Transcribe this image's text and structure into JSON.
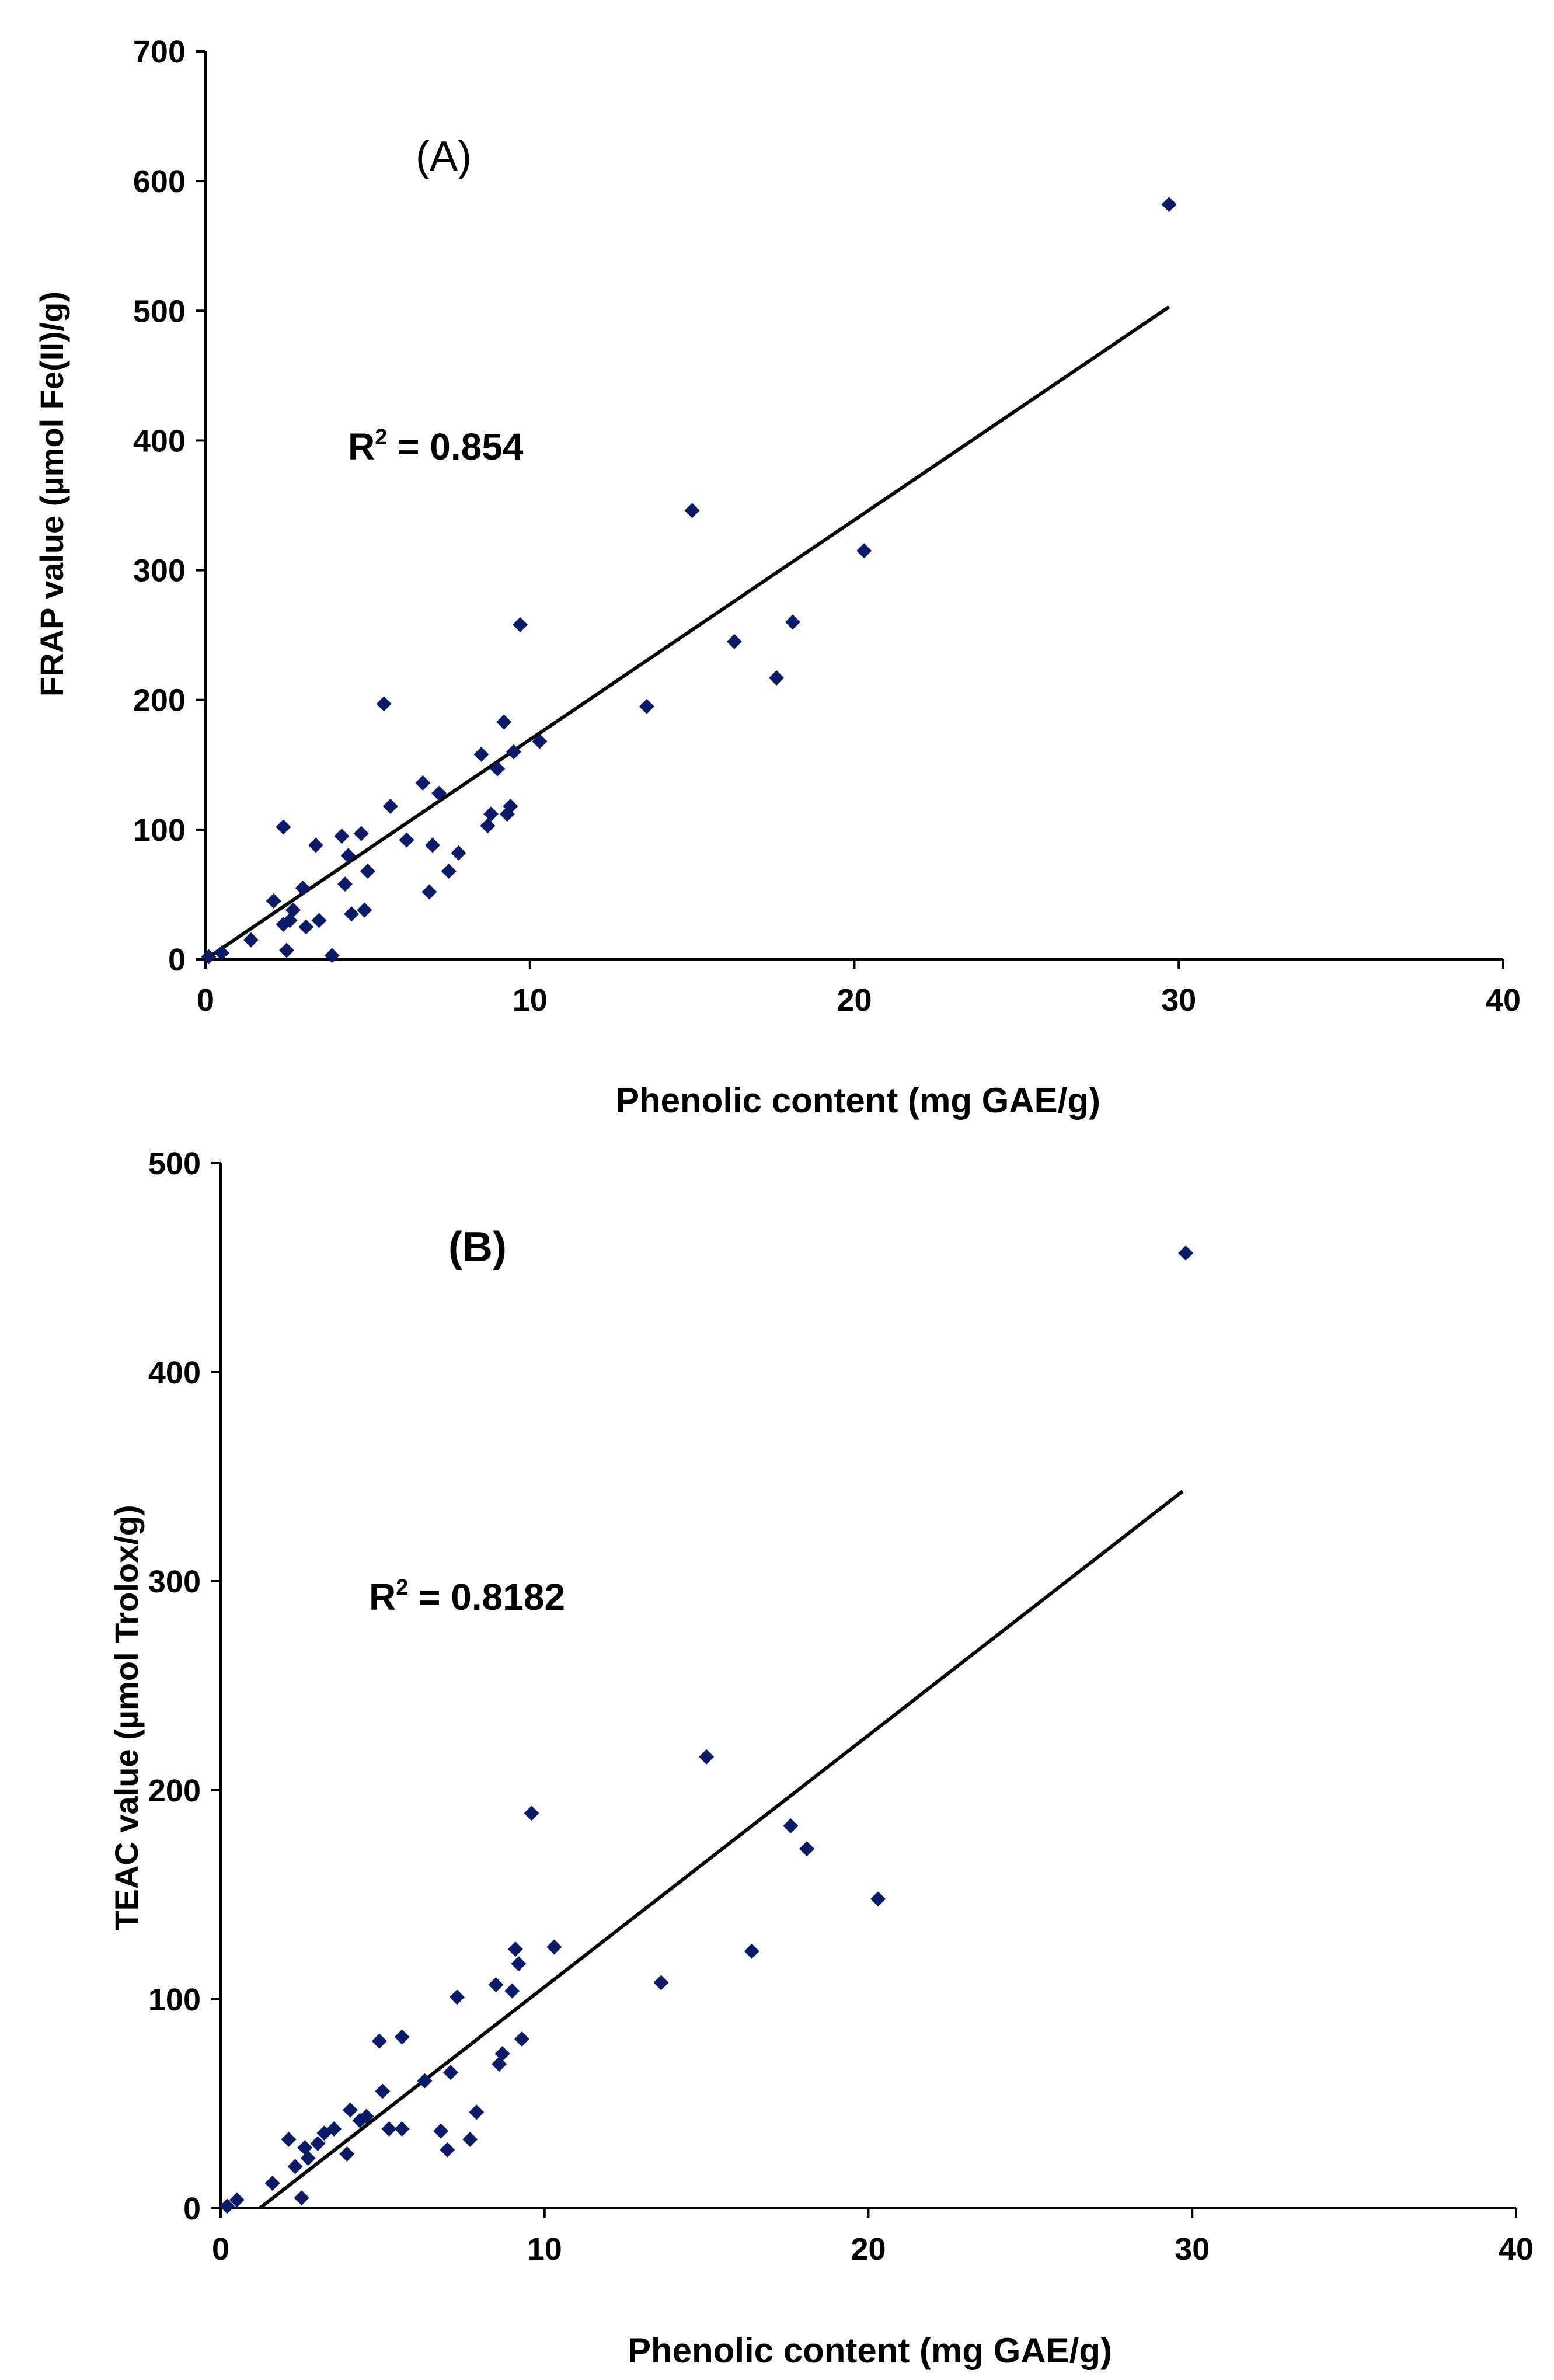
{
  "chart_data": [
    {
      "type": "scatter",
      "panel_label": "(A)",
      "xlabel": "Phenolic content (mg GAE/g)",
      "ylabel": "FRAP value (µmol Fe(II)/g)",
      "xlim": [
        0,
        40
      ],
      "ylim": [
        0,
        700
      ],
      "xticks": [
        0,
        10,
        20,
        30,
        40
      ],
      "yticks": [
        0,
        100,
        200,
        300,
        400,
        500,
        600,
        700
      ],
      "xtick_labels": [
        "0",
        "10",
        "20",
        "30",
        "40"
      ],
      "ytick_labels": [
        "0",
        "100",
        "200",
        "300",
        "400",
        "500",
        "600",
        "700"
      ],
      "r2_prefix": "R",
      "r2_sup": "2",
      "r2_value": " = 0.854",
      "trendline": {
        "x": [
          0,
          29.7
        ],
        "y": [
          0,
          503
        ]
      },
      "points": [
        [
          0.1,
          2
        ],
        [
          0.5,
          5
        ],
        [
          1.4,
          15
        ],
        [
          2.1,
          45
        ],
        [
          2.4,
          102
        ],
        [
          2.4,
          27
        ],
        [
          2.5,
          7
        ],
        [
          2.6,
          30
        ],
        [
          2.7,
          38
        ],
        [
          3.0,
          55
        ],
        [
          3.1,
          25
        ],
        [
          3.4,
          88
        ],
        [
          3.5,
          30
        ],
        [
          3.9,
          3
        ],
        [
          4.2,
          95
        ],
        [
          4.3,
          58
        ],
        [
          4.4,
          80
        ],
        [
          4.5,
          35
        ],
        [
          4.8,
          97
        ],
        [
          4.9,
          38
        ],
        [
          5.0,
          68
        ],
        [
          5.5,
          197
        ],
        [
          5.7,
          118
        ],
        [
          6.2,
          92
        ],
        [
          6.7,
          136
        ],
        [
          6.9,
          52
        ],
        [
          7.0,
          88
        ],
        [
          7.2,
          128
        ],
        [
          7.5,
          68
        ],
        [
          7.8,
          82
        ],
        [
          8.5,
          158
        ],
        [
          8.7,
          103
        ],
        [
          8.8,
          112
        ],
        [
          9.0,
          147
        ],
        [
          9.2,
          183
        ],
        [
          9.3,
          112
        ],
        [
          9.4,
          118
        ],
        [
          9.5,
          160
        ],
        [
          9.7,
          258
        ],
        [
          10.3,
          168
        ],
        [
          13.6,
          195
        ],
        [
          15.0,
          346
        ],
        [
          16.3,
          245
        ],
        [
          17.6,
          217
        ],
        [
          18.1,
          260
        ],
        [
          20.3,
          315
        ],
        [
          29.7,
          582
        ]
      ]
    },
    {
      "type": "scatter",
      "panel_label": "(B)",
      "xlabel": "Phenolic content (mg GAE/g)",
      "ylabel": "TEAC value (µmol Trolox/g)",
      "xlim": [
        0,
        40
      ],
      "ylim": [
        0,
        500
      ],
      "xticks": [
        0,
        10,
        20,
        30,
        40
      ],
      "yticks": [
        0,
        100,
        200,
        300,
        400,
        500
      ],
      "xtick_labels": [
        "0",
        "10",
        "20",
        "30",
        "40"
      ],
      "ytick_labels": [
        "0",
        "100",
        "200",
        "300",
        "400",
        "500"
      ],
      "r2_prefix": "R",
      "r2_sup": "2",
      "r2_value": " = 0.8182",
      "trendline": {
        "x": [
          1.2,
          29.7
        ],
        "y": [
          0,
          343
        ]
      },
      "points": [
        [
          0.2,
          1
        ],
        [
          0.5,
          4
        ],
        [
          1.6,
          12
        ],
        [
          2.1,
          33
        ],
        [
          2.3,
          20
        ],
        [
          2.5,
          5
        ],
        [
          2.6,
          29
        ],
        [
          2.7,
          24
        ],
        [
          3.0,
          31
        ],
        [
          3.2,
          36
        ],
        [
          3.5,
          38
        ],
        [
          3.9,
          26
        ],
        [
          4.0,
          47
        ],
        [
          4.3,
          42
        ],
        [
          4.5,
          44
        ],
        [
          4.9,
          80
        ],
        [
          5.0,
          56
        ],
        [
          5.2,
          38
        ],
        [
          5.6,
          82
        ],
        [
          5.6,
          38
        ],
        [
          6.3,
          61
        ],
        [
          6.8,
          37
        ],
        [
          7.0,
          28
        ],
        [
          7.1,
          65
        ],
        [
          7.3,
          101
        ],
        [
          7.7,
          33
        ],
        [
          7.9,
          46
        ],
        [
          8.5,
          107
        ],
        [
          8.6,
          69
        ],
        [
          8.7,
          74
        ],
        [
          9.0,
          104
        ],
        [
          9.1,
          124
        ],
        [
          9.2,
          117
        ],
        [
          9.3,
          81
        ],
        [
          9.6,
          189
        ],
        [
          10.3,
          125
        ],
        [
          13.6,
          108
        ],
        [
          15.0,
          216
        ],
        [
          16.4,
          123
        ],
        [
          17.6,
          183
        ],
        [
          18.1,
          172
        ],
        [
          20.3,
          148
        ],
        [
          29.8,
          457
        ]
      ]
    }
  ],
  "colors": {
    "points": "#0d1a66",
    "axes": "#000000",
    "trendline": "#000000"
  }
}
